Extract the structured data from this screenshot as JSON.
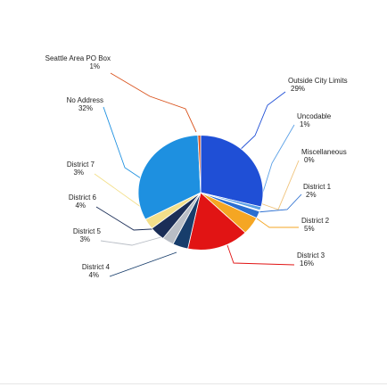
{
  "chart_data": {
    "type": "pie",
    "slices": [
      {
        "label": "Outside City Limits",
        "pct_label": "29%",
        "value": 29,
        "color": "#1f4fd6"
      },
      {
        "label": "Uncodable",
        "pct_label": "1%",
        "value": 1,
        "color": "#5aa0e6"
      },
      {
        "label": "Miscellaneous",
        "pct_label": "0%",
        "value": 0.3,
        "color": "#e9eef7"
      },
      {
        "label": "District 1",
        "pct_label": "2%",
        "value": 2,
        "color": "#2b6fd1"
      },
      {
        "label": "District 2",
        "pct_label": "5%",
        "value": 5,
        "color": "#f5a623"
      },
      {
        "label": "District 3",
        "pct_label": "16%",
        "value": 16,
        "color": "#e11414"
      },
      {
        "label": "District 4",
        "pct_label": "4%",
        "value": 4,
        "color": "#173d6b"
      },
      {
        "label": "District 5",
        "pct_label": "3%",
        "value": 3,
        "color": "#b9bec6"
      },
      {
        "label": "District 6",
        "pct_label": "4%",
        "value": 4,
        "color": "#1b2e57"
      },
      {
        "label": "District 7",
        "pct_label": "3%",
        "value": 3,
        "color": "#f3df8a"
      },
      {
        "label": "No Address",
        "pct_label": "32%",
        "value": 32,
        "color": "#1e90e0"
      },
      {
        "label": "Seattle Area PO Box",
        "pct_label": "1%",
        "value": 0.7,
        "color": "#d9521c"
      }
    ]
  }
}
